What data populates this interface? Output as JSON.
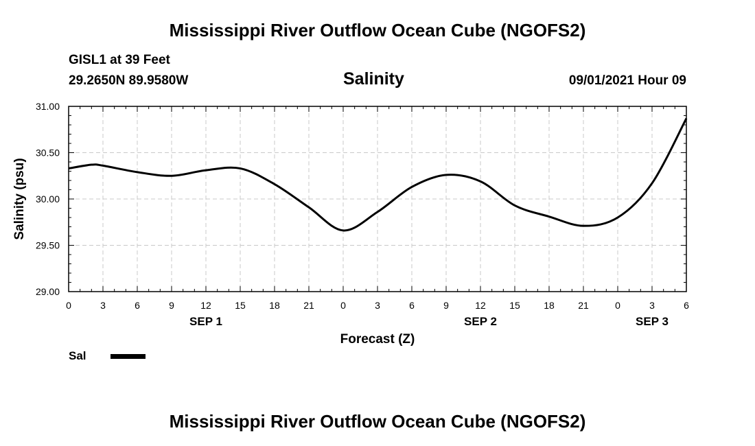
{
  "header": {
    "title_top": "Mississippi River Outflow Ocean Cube (NGOFS2)",
    "station": "GISL1 at 39 Feet",
    "coords": "29.2650N  89.9580W",
    "chart_name": "Salinity",
    "datetime": "09/01/2021 Hour 09"
  },
  "footer": {
    "title_bottom": "Mississippi River Outflow Ocean Cube (NGOFS2)"
  },
  "legend": {
    "label": "Sal",
    "line_color": "#000000"
  },
  "chart_data": {
    "type": "line",
    "title": "Salinity",
    "xlabel": "Forecast (Z)",
    "ylabel": "Salinity (psu)",
    "ylim": [
      29.0,
      31.0
    ],
    "yticks": [
      29.0,
      29.5,
      30.0,
      30.5,
      31.0
    ],
    "ytick_labels": [
      "29.00",
      "29.50",
      "30.00",
      "30.50",
      "31.00"
    ],
    "xlim": [
      0,
      54
    ],
    "xticks": [
      0,
      3,
      6,
      9,
      12,
      15,
      18,
      21,
      24,
      27,
      30,
      33,
      36,
      39,
      42,
      45,
      48,
      51,
      54
    ],
    "xtick_labels": [
      "0",
      "3",
      "6",
      "9",
      "12",
      "15",
      "18",
      "21",
      "0",
      "3",
      "6",
      "9",
      "12",
      "15",
      "18",
      "21",
      "0",
      "3",
      "6"
    ],
    "day_labels": [
      {
        "hour": 12,
        "label": "SEP 1"
      },
      {
        "hour": 36,
        "label": "SEP 2"
      },
      {
        "hour": 51,
        "label": "SEP 3"
      }
    ],
    "grid": true,
    "series": [
      {
        "name": "Sal",
        "color": "#000000",
        "x": [
          0,
          2,
          3,
          6,
          9,
          12,
          15,
          18,
          21,
          24,
          27,
          30,
          33,
          36,
          39,
          42,
          45,
          48,
          51,
          54
        ],
        "values": [
          30.33,
          30.37,
          30.36,
          30.29,
          30.25,
          30.31,
          30.33,
          30.16,
          29.91,
          29.66,
          29.86,
          30.13,
          30.26,
          30.19,
          29.93,
          29.81,
          29.71,
          29.8,
          30.17,
          30.87
        ]
      }
    ]
  }
}
